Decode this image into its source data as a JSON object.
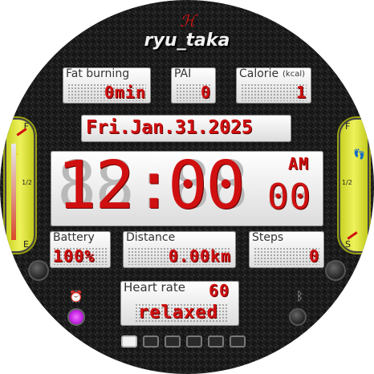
{
  "brand": {
    "name": "ryu_taka",
    "logo_mark": "ℋ"
  },
  "fat_burning": {
    "label": "Fat burning",
    "value": "0min"
  },
  "pai": {
    "label": "PAI",
    "value": "0"
  },
  "calorie": {
    "label": "Calorie",
    "unit": "(kcal)",
    "value": "1"
  },
  "date": {
    "text": "Fri.Jan.31.2025"
  },
  "time": {
    "hours": "12",
    "sep": ":",
    "minutes": "00",
    "seconds": "00",
    "ampm": "AM"
  },
  "battery": {
    "label": "Battery",
    "value": "100%",
    "gauge_level": 1.0
  },
  "distance": {
    "label": "Distance",
    "value": "0.00km"
  },
  "steps": {
    "label": "Steps",
    "value": "0"
  },
  "heart": {
    "label": "Heart rate",
    "value": "60",
    "status": "relaxed"
  },
  "left_gauge": {
    "top": "F",
    "bottom": "E",
    "mark": "1/2"
  },
  "right_gauge": {
    "top": "F",
    "bottom": "S",
    "mark": "1/2"
  },
  "pager": {
    "count": 6,
    "active_index": 0
  },
  "colors": {
    "lcd_red": "#d01010",
    "gauge_yellow": "#e6ec40",
    "alarm_purple": "#e040ff"
  },
  "icons": [
    "alarm-icon",
    "bluetooth-icon",
    "fuel-icon",
    "footprint-icon"
  ]
}
